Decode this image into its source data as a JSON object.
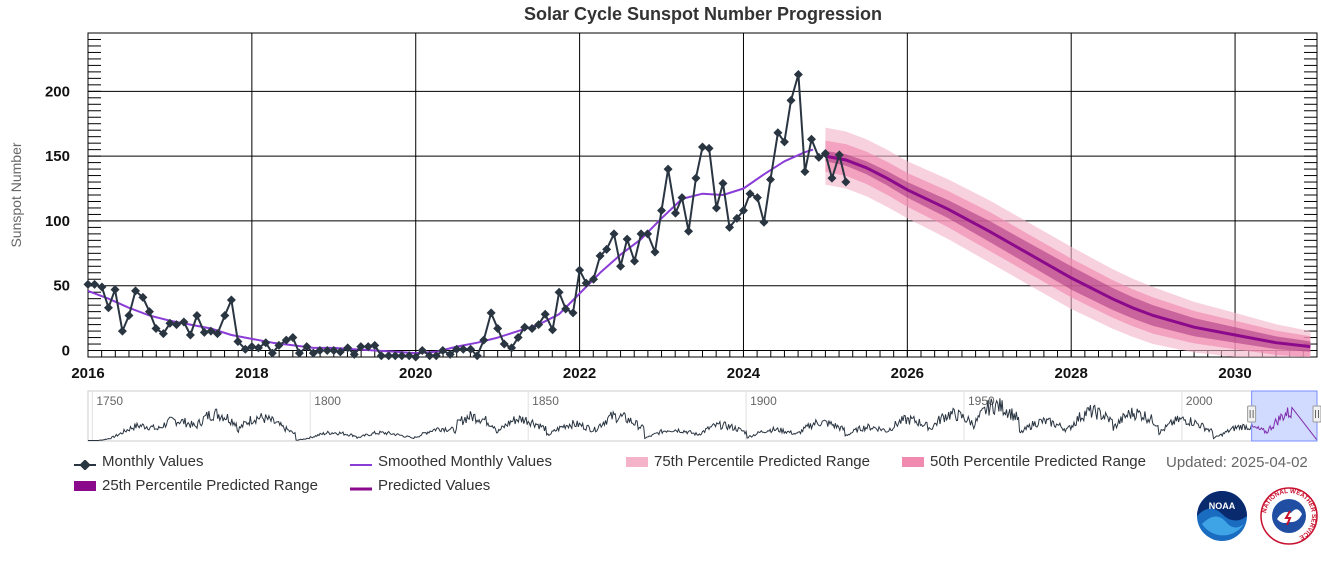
{
  "colors": {
    "monthly": "#2a3542",
    "smoothed": "#8a3cd6",
    "predicted": "#8b0a8b",
    "p75": "#f4b3c9",
    "p50": "#f08aae",
    "p25": "#a8327f",
    "navigator_mask": "rgba(102,133,255,0.3)"
  },
  "legend": {
    "monthly": "Monthly Values",
    "smoothed": "Smoothed Monthly Values",
    "p75": "75th Percentile Predicted Range",
    "p50": "50th Percentile Predicted Range",
    "p25": "25th Percentile Predicted Range",
    "predicted": "Predicted Values"
  },
  "updated": "Updated: 2025-04-02",
  "logos": {
    "noaa": "NOAA",
    "nws": "NATIONAL WEATHER SERVICE"
  },
  "chart_data": {
    "type": "line",
    "title": "Solar Cycle Sunspot Number Progression",
    "ylabel": "Sunspot Number",
    "xlabel": "",
    "xlim": [
      2016.0,
      2031.0
    ],
    "ylim": [
      -5,
      245
    ],
    "x_ticks": [
      2016,
      2018,
      2020,
      2022,
      2024,
      2026,
      2028,
      2030
    ],
    "y_ticks": [
      0,
      50,
      100,
      150,
      200
    ],
    "grid": true,
    "legend_position": "bottom",
    "monthly": [
      [
        2016.0,
        51
      ],
      [
        2016.08,
        51
      ],
      [
        2016.17,
        49
      ],
      [
        2016.25,
        33
      ],
      [
        2016.33,
        47
      ],
      [
        2016.42,
        15
      ],
      [
        2016.5,
        27
      ],
      [
        2016.58,
        46
      ],
      [
        2016.67,
        41
      ],
      [
        2016.75,
        30
      ],
      [
        2016.83,
        17
      ],
      [
        2016.92,
        13
      ],
      [
        2017.0,
        21
      ],
      [
        2017.08,
        20
      ],
      [
        2017.17,
        22
      ],
      [
        2017.25,
        12
      ],
      [
        2017.33,
        27
      ],
      [
        2017.42,
        14
      ],
      [
        2017.5,
        15
      ],
      [
        2017.58,
        13
      ],
      [
        2017.67,
        27
      ],
      [
        2017.75,
        39
      ],
      [
        2017.83,
        7
      ],
      [
        2017.92,
        1
      ],
      [
        2018.0,
        3
      ],
      [
        2018.08,
        2
      ],
      [
        2018.17,
        6
      ],
      [
        2018.25,
        -2
      ],
      [
        2018.33,
        4
      ],
      [
        2018.42,
        8
      ],
      [
        2018.5,
        10
      ],
      [
        2018.58,
        -2
      ],
      [
        2018.67,
        3
      ],
      [
        2018.75,
        -2
      ],
      [
        2018.83,
        0
      ],
      [
        2018.92,
        0
      ],
      [
        2019.0,
        0
      ],
      [
        2019.08,
        -1
      ],
      [
        2019.17,
        2
      ],
      [
        2019.25,
        -3
      ],
      [
        2019.33,
        3
      ],
      [
        2019.42,
        3
      ],
      [
        2019.5,
        4
      ],
      [
        2019.58,
        -4
      ],
      [
        2019.67,
        -4
      ],
      [
        2019.75,
        -4
      ],
      [
        2019.83,
        -4
      ],
      [
        2019.92,
        -4
      ],
      [
        2020.0,
        -5
      ],
      [
        2020.08,
        0
      ],
      [
        2020.17,
        -4
      ],
      [
        2020.25,
        -4
      ],
      [
        2020.33,
        0
      ],
      [
        2020.42,
        -3
      ],
      [
        2020.5,
        1
      ],
      [
        2020.58,
        1
      ],
      [
        2020.67,
        1
      ],
      [
        2020.75,
        -4
      ],
      [
        2020.83,
        8
      ],
      [
        2020.92,
        29
      ],
      [
        2021.0,
        17
      ],
      [
        2021.08,
        5
      ],
      [
        2021.17,
        2
      ],
      [
        2021.25,
        10
      ],
      [
        2021.33,
        18
      ],
      [
        2021.42,
        17
      ],
      [
        2021.5,
        20
      ],
      [
        2021.58,
        28
      ],
      [
        2021.67,
        16
      ],
      [
        2021.75,
        45
      ],
      [
        2021.83,
        32
      ],
      [
        2021.92,
        29
      ],
      [
        2022.0,
        62
      ],
      [
        2022.08,
        52
      ],
      [
        2022.17,
        55
      ],
      [
        2022.25,
        73
      ],
      [
        2022.33,
        78
      ],
      [
        2022.42,
        90
      ],
      [
        2022.5,
        65
      ],
      [
        2022.58,
        86
      ],
      [
        2022.67,
        69
      ],
      [
        2022.75,
        90
      ],
      [
        2022.83,
        90
      ],
      [
        2022.92,
        76
      ],
      [
        2023.0,
        108
      ],
      [
        2023.08,
        140
      ],
      [
        2023.17,
        106
      ],
      [
        2023.25,
        118
      ],
      [
        2023.33,
        92
      ],
      [
        2023.42,
        133
      ],
      [
        2023.5,
        157
      ],
      [
        2023.58,
        156
      ],
      [
        2023.67,
        110
      ],
      [
        2023.75,
        129
      ],
      [
        2023.83,
        95
      ],
      [
        2023.92,
        102
      ],
      [
        2024.0,
        108
      ],
      [
        2024.08,
        121
      ],
      [
        2024.17,
        118
      ],
      [
        2024.25,
        99
      ],
      [
        2024.33,
        132
      ],
      [
        2024.42,
        168
      ],
      [
        2024.5,
        161
      ],
      [
        2024.58,
        193
      ],
      [
        2024.67,
        213
      ],
      [
        2024.75,
        138
      ],
      [
        2024.83,
        163
      ],
      [
        2024.92,
        149
      ],
      [
        2025.0,
        152
      ],
      [
        2025.08,
        133
      ],
      [
        2025.17,
        151
      ],
      [
        2025.25,
        130
      ]
    ],
    "smoothed": [
      [
        2016.0,
        46
      ],
      [
        2016.25,
        40
      ],
      [
        2016.5,
        33
      ],
      [
        2016.75,
        27
      ],
      [
        2017.0,
        23
      ],
      [
        2017.25,
        20
      ],
      [
        2017.5,
        17
      ],
      [
        2017.75,
        12
      ],
      [
        2018.0,
        9
      ],
      [
        2018.25,
        6
      ],
      [
        2018.5,
        4
      ],
      [
        2018.75,
        2
      ],
      [
        2019.0,
        2
      ],
      [
        2019.25,
        1
      ],
      [
        2019.5,
        0
      ],
      [
        2019.75,
        -1
      ],
      [
        2020.0,
        -2
      ],
      [
        2020.25,
        -1
      ],
      [
        2020.5,
        3
      ],
      [
        2020.75,
        6
      ],
      [
        2021.0,
        10
      ],
      [
        2021.25,
        15
      ],
      [
        2021.5,
        20
      ],
      [
        2021.75,
        28
      ],
      [
        2022.0,
        44
      ],
      [
        2022.25,
        60
      ],
      [
        2022.5,
        74
      ],
      [
        2022.75,
        86
      ],
      [
        2023.0,
        102
      ],
      [
        2023.25,
        117
      ],
      [
        2023.5,
        121
      ],
      [
        2023.75,
        120
      ],
      [
        2024.0,
        125
      ],
      [
        2024.25,
        136
      ],
      [
        2024.5,
        146
      ],
      [
        2024.75,
        153
      ],
      [
        2024.85,
        155
      ]
    ],
    "predicted": [
      [
        2025.0,
        150
      ],
      [
        2025.25,
        147
      ],
      [
        2025.5,
        141
      ],
      [
        2025.75,
        133
      ],
      [
        2026.0,
        124
      ],
      [
        2026.5,
        109
      ],
      [
        2027.0,
        92
      ],
      [
        2027.5,
        74
      ],
      [
        2028.0,
        56
      ],
      [
        2028.5,
        40
      ],
      [
        2028.75,
        33
      ],
      [
        2029.0,
        27
      ],
      [
        2029.5,
        18
      ],
      [
        2030.0,
        12
      ],
      [
        2030.5,
        6
      ],
      [
        2030.92,
        3
      ]
    ],
    "p25_width": [
      [
        2025.0,
        4
      ],
      [
        2026.0,
        6
      ],
      [
        2027.0,
        8
      ],
      [
        2028.0,
        9
      ],
      [
        2029.0,
        8
      ],
      [
        2030.0,
        6
      ],
      [
        2030.92,
        4
      ]
    ],
    "p50_width": [
      [
        2025.0,
        12
      ],
      [
        2026.0,
        13
      ],
      [
        2027.0,
        15
      ],
      [
        2028.0,
        15
      ],
      [
        2029.0,
        14
      ],
      [
        2030.0,
        11
      ],
      [
        2030.92,
        8
      ]
    ],
    "p75_width": [
      [
        2025.0,
        22
      ],
      [
        2026.0,
        22
      ],
      [
        2027.0,
        24
      ],
      [
        2028.0,
        24
      ],
      [
        2029.0,
        22
      ],
      [
        2030.0,
        17
      ],
      [
        2030.92,
        12
      ]
    ],
    "navigator": {
      "x_ticks": [
        1750,
        1800,
        1850,
        1900,
        1950,
        2000
      ],
      "xlim": [
        1749,
        2031
      ],
      "selection": [
        2016.0,
        2031.0
      ],
      "cycle_maxima": [
        [
          1761,
          86
        ],
        [
          1769,
          115
        ],
        [
          1778,
          154
        ],
        [
          1788,
          132
        ],
        [
          1805,
          47
        ],
        [
          1816,
          46
        ],
        [
          1830,
          71
        ],
        [
          1837,
          138
        ],
        [
          1848,
          124
        ],
        [
          1860,
          95
        ],
        [
          1870,
          139
        ],
        [
          1883,
          64
        ],
        [
          1894,
          88
        ],
        [
          1906,
          64
        ],
        [
          1917,
          105
        ],
        [
          1928,
          78
        ],
        [
          1937,
          119
        ],
        [
          1947,
          151
        ],
        [
          1957,
          201
        ],
        [
          1968,
          110
        ],
        [
          1979,
          165
        ],
        [
          1989,
          158
        ],
        [
          2000,
          120
        ],
        [
          2014,
          82
        ],
        [
          2025,
          160
        ]
      ]
    }
  }
}
